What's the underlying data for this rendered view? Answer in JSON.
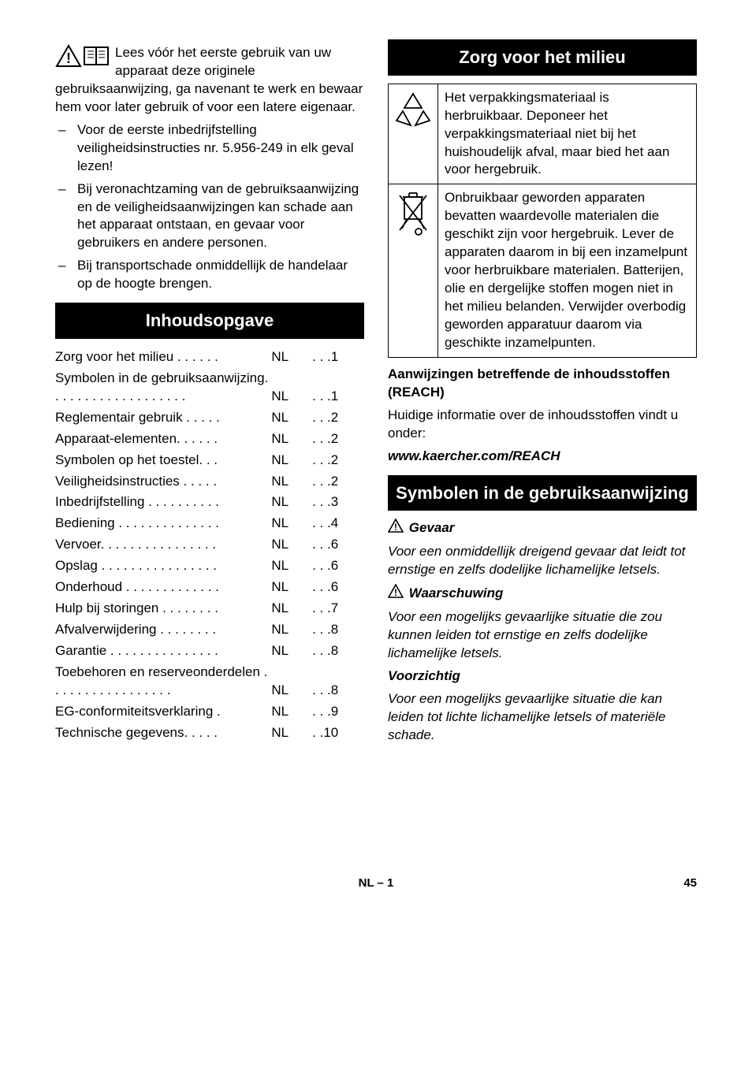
{
  "left": {
    "intro": "Lees vóór het eerste gebruik van uw apparaat deze originele gebruiksaanwijzing, ga navenant te werk en bewaar hem voor later gebruik of voor een latere eigenaar.",
    "bullets": [
      "Voor de eerste inbedrijfstelling veiligheidsinstructies nr. 5.956-249 in elk geval lezen!",
      "Bij veronachtzaming van de gebruiksaanwijzing en de veiligheidsaanwijzingen kan schade aan het apparaat ontstaan, en gevaar voor gebruikers en andere personen.",
      "Bij transportschade onmiddellijk de handelaar op de hoogte brengen."
    ],
    "toc_heading": "Inhoudsopgave",
    "toc": [
      {
        "label": "Zorg voor het milieu . . . . . .",
        "loc": "NL",
        "pg": " . . .1"
      },
      {
        "label": "Symbolen in de gebruiksaanwijzing. . . . . . . . . . . . . . . . . . .",
        "loc": "NL",
        "pg": " . . .1"
      },
      {
        "label": "Reglementair gebruik . . . . .",
        "loc": "NL",
        "pg": " . . .2"
      },
      {
        "label": "Apparaat-elementen. . . . . .",
        "loc": "NL",
        "pg": " . . .2"
      },
      {
        "label": "Symbolen op het toestel. . .",
        "loc": "NL",
        "pg": " . . .2"
      },
      {
        "label": "Veiligheidsinstructies . . . . .",
        "loc": "NL",
        "pg": " . . .2"
      },
      {
        "label": "Inbedrijfstelling . . . . . . . . . .",
        "loc": "NL",
        "pg": " . . .3"
      },
      {
        "label": "Bediening . . . . . . . . . . . . . .",
        "loc": "NL",
        "pg": " . . .4"
      },
      {
        "label": "Vervoer. . . . . . . . . . . . . . . .",
        "loc": "NL",
        "pg": " . . .6"
      },
      {
        "label": "Opslag . . . . . . . . . . . . . . . .",
        "loc": "NL",
        "pg": " . . .6"
      },
      {
        "label": "Onderhoud . . . . . . . . . . . . .",
        "loc": "NL",
        "pg": " . . .6"
      },
      {
        "label": "Hulp bij storingen . . . . . . . .",
        "loc": "NL",
        "pg": " . . .7"
      },
      {
        "label": "Afvalverwijdering  . . . . . . . .",
        "loc": "NL",
        "pg": " . . .8"
      },
      {
        "label": "Garantie . . . . . . . . . . . . . . .",
        "loc": "NL",
        "pg": " . . .8"
      },
      {
        "label": "Toebehoren en reserveonderdelen  . . . . . . . . . . . . . . . . .",
        "loc": "NL",
        "pg": " . . .8"
      },
      {
        "label": "EG-conformiteitsverklaring .",
        "loc": "NL",
        "pg": " . . .9"
      },
      {
        "label": "Technische gegevens. . . . .",
        "loc": "NL",
        "pg": " . .10"
      }
    ]
  },
  "right": {
    "env_heading": "Zorg voor het milieu",
    "box1": "Het verpakkingsmateriaal is herbruikbaar. Deponeer het verpakkingsmateriaal niet bij het huishoudelijk afval, maar bied het aan voor hergebruik.",
    "box2": "Onbruikbaar geworden apparaten bevatten waardevolle materialen die geschikt zijn voor hergebruik. Lever de apparaten daarom in bij een inzamelpunt voor herbruikbare materialen. Batterijen, olie en dergelijke stoffen mogen niet in het milieu belanden. Verwijder overbodig geworden apparatuur daarom via geschikte inzamelpunten.",
    "reach_h": "Aanwijzingen betreffende de inhoudsstoffen (REACH)",
    "reach_p": "Huidige informatie over de inhoudsstoffen vindt u onder:",
    "reach_url": "www.kaercher.com/REACH",
    "sym_heading": "Symbolen in de gebruiksaanwijzing",
    "gevaar_h": "Gevaar",
    "gevaar_p": "Voor een onmiddellijk dreigend gevaar dat leidt tot ernstige en zelfs dodelijke lichamelijke letsels.",
    "waarsch_h": "Waarschuwing",
    "waarsch_p": "Voor een mogelijks gevaarlijke situatie die zou kunnen leiden tot ernstige en zelfs dodelijke lichamelijke letsels.",
    "voorz_h": "Voorzichtig",
    "voorz_p": "Voor een mogelijks gevaarlijke situatie die kan leiden tot lichte lichamelijke letsels of materiële schade."
  },
  "footer": {
    "center": "NL – 1",
    "pagenum": "45"
  }
}
